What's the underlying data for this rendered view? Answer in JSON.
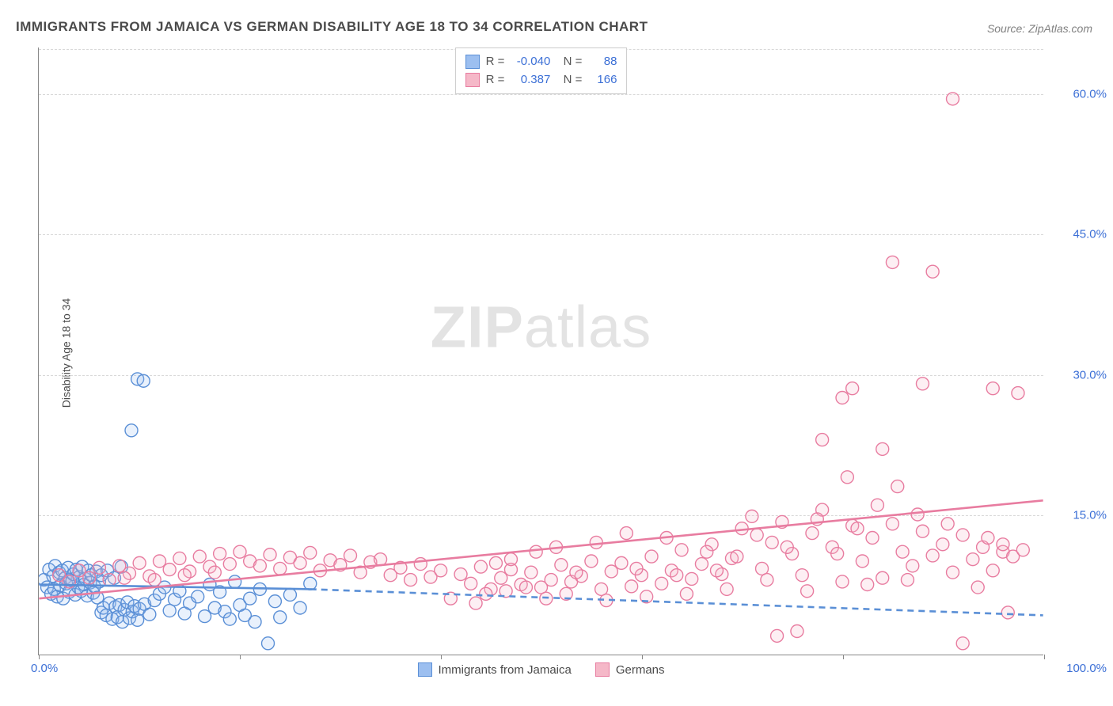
{
  "title": "IMMIGRANTS FROM JAMAICA VS GERMAN DISABILITY AGE 18 TO 34 CORRELATION CHART",
  "source_prefix": "Source: ",
  "source": "ZipAtlas.com",
  "ylabel": "Disability Age 18 to 34",
  "watermark_bold": "ZIP",
  "watermark_rest": "atlas",
  "chart": {
    "type": "scatter",
    "xlim": [
      0,
      100
    ],
    "ylim": [
      0,
      65
    ],
    "yticks": [
      {
        "v": 15.0,
        "label": "15.0%"
      },
      {
        "v": 30.0,
        "label": "30.0%"
      },
      {
        "v": 45.0,
        "label": "45.0%"
      },
      {
        "v": 60.0,
        "label": "60.0%"
      }
    ],
    "xtick_major": [
      0,
      20,
      40,
      60,
      80,
      100
    ],
    "xtick_label_min": "0.0%",
    "xtick_label_max": "100.0%",
    "grid_color": "#d8d8d8",
    "background_color": "#ffffff",
    "marker_radius": 8,
    "marker_stroke_width": 1.4,
    "marker_fill_opacity": 0.22,
    "trend_stroke_width": 2.6
  },
  "series": [
    {
      "name": "Immigrants from Jamaica",
      "color_fill": "#9cbff0",
      "color_stroke": "#5a8fd6",
      "R": "-0.040",
      "N": "88",
      "trend": {
        "x1": 0,
        "y1": 7.5,
        "x2": 27,
        "y2": 7.0,
        "solid": true
      },
      "trend_ext": {
        "x1": 27,
        "y1": 7.0,
        "x2": 100,
        "y2": 4.2,
        "solid": false
      },
      "points": [
        [
          0.5,
          8.0
        ],
        [
          0.8,
          7.2
        ],
        [
          1.0,
          9.1
        ],
        [
          1.2,
          6.5
        ],
        [
          1.4,
          8.4
        ],
        [
          1.5,
          7.0
        ],
        [
          1.6,
          9.5
        ],
        [
          1.8,
          6.2
        ],
        [
          2.0,
          8.8
        ],
        [
          2.1,
          7.4
        ],
        [
          2.3,
          9.0
        ],
        [
          2.4,
          6.0
        ],
        [
          2.6,
          8.2
        ],
        [
          2.7,
          7.6
        ],
        [
          2.9,
          9.3
        ],
        [
          3.0,
          6.7
        ],
        [
          3.1,
          8.0
        ],
        [
          3.3,
          7.9
        ],
        [
          3.4,
          8.6
        ],
        [
          3.6,
          6.4
        ],
        [
          3.7,
          9.1
        ],
        [
          3.9,
          7.2
        ],
        [
          4.0,
          8.3
        ],
        [
          4.2,
          6.8
        ],
        [
          4.3,
          9.4
        ],
        [
          4.5,
          7.5
        ],
        [
          4.6,
          8.1
        ],
        [
          4.8,
          6.3
        ],
        [
          4.9,
          9.0
        ],
        [
          5.1,
          7.7
        ],
        [
          5.2,
          8.5
        ],
        [
          5.4,
          6.6
        ],
        [
          5.5,
          7.3
        ],
        [
          5.7,
          8.9
        ],
        [
          5.8,
          6.1
        ],
        [
          6.0,
          7.8
        ],
        [
          6.2,
          4.5
        ],
        [
          6.4,
          5.0
        ],
        [
          6.7,
          4.2
        ],
        [
          7.0,
          5.5
        ],
        [
          7.3,
          3.8
        ],
        [
          7.6,
          5.1
        ],
        [
          7.8,
          4.0
        ],
        [
          8.0,
          5.3
        ],
        [
          8.3,
          3.5
        ],
        [
          8.5,
          4.8
        ],
        [
          8.8,
          5.6
        ],
        [
          9.0,
          3.9
        ],
        [
          9.3,
          4.6
        ],
        [
          9.5,
          5.2
        ],
        [
          9.8,
          3.7
        ],
        [
          10.0,
          4.9
        ],
        [
          10.5,
          5.4
        ],
        [
          11.0,
          4.3
        ],
        [
          11.5,
          5.8
        ],
        [
          12.0,
          6.5
        ],
        [
          12.5,
          7.2
        ],
        [
          13.0,
          4.7
        ],
        [
          13.5,
          5.9
        ],
        [
          14.0,
          6.8
        ],
        [
          14.5,
          4.4
        ],
        [
          15.0,
          5.5
        ],
        [
          15.8,
          6.2
        ],
        [
          16.5,
          4.1
        ],
        [
          17.0,
          7.5
        ],
        [
          17.5,
          5.0
        ],
        [
          18.0,
          6.7
        ],
        [
          18.5,
          4.6
        ],
        [
          19.0,
          3.8
        ],
        [
          19.5,
          7.8
        ],
        [
          20.0,
          5.3
        ],
        [
          20.5,
          4.2
        ],
        [
          21.0,
          6.0
        ],
        [
          21.5,
          3.5
        ],
        [
          22.0,
          7.0
        ],
        [
          22.8,
          1.2
        ],
        [
          23.5,
          5.7
        ],
        [
          24.0,
          4.0
        ],
        [
          25.0,
          6.4
        ],
        [
          26.0,
          5.0
        ],
        [
          27.0,
          7.6
        ],
        [
          9.2,
          24.0
        ],
        [
          9.8,
          29.5
        ],
        [
          10.4,
          29.3
        ],
        [
          6.2,
          8.5
        ],
        [
          6.8,
          9.0
        ],
        [
          7.5,
          8.2
        ],
        [
          8.2,
          9.4
        ]
      ]
    },
    {
      "name": "Germans",
      "color_fill": "#f5b8c8",
      "color_stroke": "#e87ca0",
      "R": "0.387",
      "N": "166",
      "trend": {
        "x1": 0,
        "y1": 6.0,
        "x2": 100,
        "y2": 16.5,
        "solid": true
      },
      "points": [
        [
          2.0,
          8.5
        ],
        [
          3.0,
          7.8
        ],
        [
          4.0,
          9.0
        ],
        [
          5.0,
          8.2
        ],
        [
          6.0,
          9.3
        ],
        [
          7.0,
          8.0
        ],
        [
          8.0,
          9.5
        ],
        [
          9.0,
          8.7
        ],
        [
          10.0,
          9.8
        ],
        [
          11.0,
          8.4
        ],
        [
          12.0,
          10.0
        ],
        [
          13.0,
          9.1
        ],
        [
          14.0,
          10.3
        ],
        [
          15.0,
          8.9
        ],
        [
          16.0,
          10.5
        ],
        [
          17.0,
          9.4
        ],
        [
          18.0,
          10.8
        ],
        [
          19.0,
          9.7
        ],
        [
          20.0,
          11.0
        ],
        [
          21.0,
          10.0
        ],
        [
          22.0,
          9.5
        ],
        [
          23.0,
          10.7
        ],
        [
          24.0,
          9.2
        ],
        [
          25.0,
          10.4
        ],
        [
          26.0,
          9.8
        ],
        [
          27.0,
          10.9
        ],
        [
          28.0,
          9.0
        ],
        [
          29.0,
          10.1
        ],
        [
          30.0,
          9.6
        ],
        [
          31.0,
          10.6
        ],
        [
          32.0,
          8.8
        ],
        [
          33.0,
          9.9
        ],
        [
          34.0,
          10.2
        ],
        [
          35.0,
          8.5
        ],
        [
          36.0,
          9.3
        ],
        [
          37.0,
          8.0
        ],
        [
          38.0,
          9.7
        ],
        [
          39.0,
          8.3
        ],
        [
          40.0,
          9.0
        ],
        [
          42.0,
          8.6
        ],
        [
          43.0,
          7.6
        ],
        [
          44.0,
          9.4
        ],
        [
          45.0,
          7.0
        ],
        [
          46.0,
          8.2
        ],
        [
          47.0,
          9.1
        ],
        [
          48.0,
          7.5
        ],
        [
          49.0,
          8.8
        ],
        [
          50.0,
          7.2
        ],
        [
          51.0,
          8.0
        ],
        [
          52.0,
          9.6
        ],
        [
          53.0,
          7.8
        ],
        [
          54.0,
          8.4
        ],
        [
          55.0,
          10.0
        ],
        [
          56.0,
          7.0
        ],
        [
          57.0,
          8.9
        ],
        [
          58.0,
          9.8
        ],
        [
          59.0,
          7.3
        ],
        [
          60.0,
          8.5
        ],
        [
          61.0,
          10.5
        ],
        [
          62.0,
          7.6
        ],
        [
          63.0,
          9.0
        ],
        [
          64.0,
          11.2
        ],
        [
          65.0,
          8.1
        ],
        [
          66.0,
          9.7
        ],
        [
          67.0,
          11.8
        ],
        [
          68.0,
          8.6
        ],
        [
          69.0,
          10.3
        ],
        [
          70.0,
          13.5
        ],
        [
          71.0,
          14.8
        ],
        [
          72.0,
          9.2
        ],
        [
          73.0,
          12.0
        ],
        [
          74.0,
          14.2
        ],
        [
          75.0,
          10.8
        ],
        [
          76.0,
          8.5
        ],
        [
          77.0,
          13.0
        ],
        [
          78.0,
          15.5
        ],
        [
          79.0,
          11.5
        ],
        [
          80.0,
          7.8
        ],
        [
          81.0,
          13.8
        ],
        [
          82.0,
          10.0
        ],
        [
          83.0,
          12.5
        ],
        [
          84.0,
          8.2
        ],
        [
          85.0,
          14.0
        ],
        [
          86.0,
          11.0
        ],
        [
          87.0,
          9.5
        ],
        [
          88.0,
          13.2
        ],
        [
          89.0,
          10.6
        ],
        [
          90.0,
          11.8
        ],
        [
          91.0,
          8.8
        ],
        [
          92.0,
          12.8
        ],
        [
          93.0,
          10.2
        ],
        [
          94.0,
          11.5
        ],
        [
          95.0,
          9.0
        ],
        [
          96.0,
          11.0
        ],
        [
          97.0,
          10.5
        ],
        [
          98.0,
          11.2
        ],
        [
          73.5,
          2.0
        ],
        [
          75.5,
          2.5
        ],
        [
          92.0,
          1.2
        ],
        [
          80.0,
          27.5
        ],
        [
          78.0,
          23.0
        ],
        [
          84.0,
          22.0
        ],
        [
          80.5,
          19.0
        ],
        [
          85.5,
          18.0
        ],
        [
          81.0,
          28.5
        ],
        [
          85.0,
          42.0
        ],
        [
          89.0,
          41.0
        ],
        [
          88.0,
          29.0
        ],
        [
          91.0,
          59.5
        ],
        [
          95.0,
          28.5
        ],
        [
          97.5,
          28.0
        ],
        [
          96.0,
          11.8
        ],
        [
          44.5,
          6.5
        ],
        [
          46.5,
          6.8
        ],
        [
          48.5,
          7.2
        ],
        [
          50.5,
          6.0
        ],
        [
          52.5,
          6.5
        ],
        [
          56.5,
          5.8
        ],
        [
          60.5,
          6.2
        ],
        [
          64.5,
          6.5
        ],
        [
          41.0,
          6.0
        ],
        [
          43.5,
          5.5
        ],
        [
          68.5,
          7.0
        ],
        [
          72.5,
          8.0
        ],
        [
          76.5,
          6.8
        ],
        [
          82.5,
          7.5
        ],
        [
          86.5,
          8.0
        ],
        [
          93.5,
          7.2
        ],
        [
          47.0,
          10.2
        ],
        [
          51.5,
          11.5
        ],
        [
          55.5,
          12.0
        ],
        [
          58.5,
          13.0
        ],
        [
          62.5,
          12.5
        ],
        [
          66.5,
          11.0
        ],
        [
          69.5,
          10.5
        ],
        [
          77.5,
          14.5
        ],
        [
          81.5,
          13.5
        ],
        [
          79.5,
          10.8
        ],
        [
          83.5,
          16.0
        ],
        [
          74.5,
          11.5
        ],
        [
          71.5,
          12.8
        ],
        [
          67.5,
          9.0
        ],
        [
          63.5,
          8.5
        ],
        [
          59.5,
          9.2
        ],
        [
          53.5,
          8.8
        ],
        [
          49.5,
          11.0
        ],
        [
          45.5,
          9.8
        ],
        [
          96.5,
          4.5
        ],
        [
          94.5,
          12.5
        ],
        [
          90.5,
          14.0
        ],
        [
          87.5,
          15.0
        ],
        [
          8.5,
          8.2
        ],
        [
          11.5,
          8.0
        ],
        [
          14.5,
          8.5
        ],
        [
          17.5,
          8.8
        ]
      ]
    }
  ]
}
